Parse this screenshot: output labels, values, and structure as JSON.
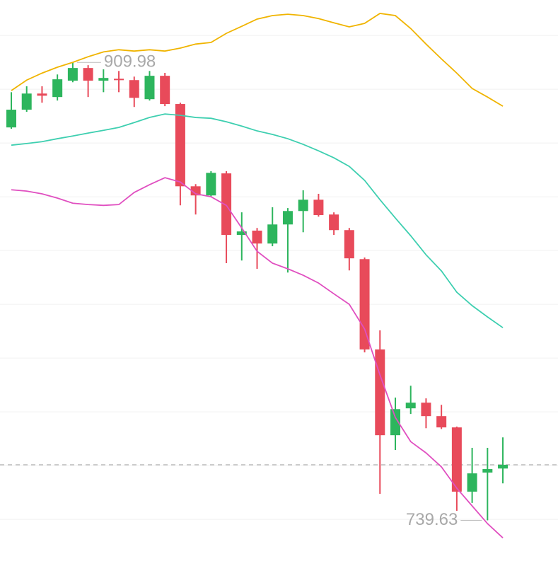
{
  "chart_data": {
    "type": "candlestick",
    "categories": [
      null,
      null,
      null,
      null,
      null,
      null,
      null,
      null,
      null,
      null,
      null,
      null,
      null,
      null,
      null,
      null,
      null,
      null,
      null,
      null,
      null,
      null,
      null,
      null,
      null,
      null,
      null,
      null,
      null,
      null,
      null,
      null,
      null
    ],
    "open": [
      885.8,
      892.4,
      898.4,
      897.1,
      903.2,
      907.9,
      903.2,
      903.9,
      903.4,
      896.3,
      905.0,
      894.5,
      863.9,
      860.5,
      868.7,
      845.8,
      847.4,
      842.6,
      849.7,
      854.7,
      858.9,
      853.4,
      847.6,
      836.8,
      803.2,
      771.3,
      781.3,
      783.4,
      778.4,
      774.2,
      750.3,
      757.4,
      758.9
    ],
    "high": [
      898.9,
      901.1,
      901.1,
      905.5,
      909.98,
      908.95,
      907.4,
      906.8,
      904.7,
      906.8,
      906.1,
      895.0,
      864.7,
      869.5,
      869.5,
      854.2,
      848.4,
      856.1,
      855.8,
      862.4,
      861.1,
      854.2,
      848.4,
      837.4,
      810.3,
      785.3,
      789.7,
      785.0,
      782.6,
      774.5,
      766.6,
      766.6,
      770.5
    ],
    "low": [
      885.3,
      891.6,
      895.0,
      895.8,
      902.6,
      897.1,
      898.9,
      898.9,
      893.4,
      895.8,
      893.7,
      856.8,
      853.4,
      860.0,
      835.3,
      836.3,
      833.2,
      841.6,
      831.8,
      846.8,
      852.6,
      845.8,
      832.6,
      802.1,
      749.5,
      765.8,
      779.2,
      773.9,
      773.6,
      743.2,
      746.1,
      739.63,
      753.4
    ],
    "close": [
      892.4,
      898.4,
      897.6,
      903.7,
      907.9,
      903.2,
      904.2,
      903.4,
      896.8,
      905.0,
      894.5,
      863.9,
      860.5,
      868.9,
      845.8,
      847.1,
      842.6,
      849.7,
      854.7,
      858.9,
      853.2,
      847.6,
      837.1,
      803.2,
      771.3,
      781.0,
      783.4,
      778.4,
      774.2,
      750.3,
      757.1,
      758.7,
      760.3
    ],
    "up_color": "#2db55d",
    "down_color": "#e84a5a",
    "lines": [
      {
        "color": "#f0b400",
        "values": [
          899.5,
          903.4,
          906.0,
          908.2,
          910.0,
          912.1,
          913.9,
          914.7,
          914.2,
          914.7,
          914.2,
          915.3,
          916.8,
          917.4,
          920.8,
          923.4,
          926.1,
          927.4,
          927.9,
          927.4,
          926.3,
          924.7,
          923.2,
          924.5,
          928.2,
          927.4,
          922.6,
          916.8,
          911.3,
          906.0,
          900.3,
          897.1,
          893.7
        ]
      },
      {
        "color": "#3ecfb0",
        "values": [
          879.2,
          879.8,
          880.5,
          881.6,
          882.6,
          883.7,
          884.7,
          885.8,
          887.6,
          889.5,
          890.8,
          890.3,
          889.5,
          889.2,
          887.9,
          886.3,
          884.5,
          883.2,
          881.6,
          879.5,
          877.1,
          874.5,
          871.3,
          866.1,
          858.9,
          852.1,
          845.5,
          838.4,
          832.4,
          824.5,
          819.5,
          815.3,
          811.3
        ]
      },
      {
        "color": "#e04fc0",
        "values": [
          862.6,
          862.1,
          861.1,
          859.5,
          857.6,
          857.1,
          856.8,
          857.1,
          861.6,
          864.5,
          867.1,
          865.5,
          861.1,
          860.0,
          856.8,
          848.4,
          839.7,
          835.3,
          833.2,
          830.8,
          827.9,
          823.9,
          820.0,
          810.8,
          793.7,
          777.9,
          768.9,
          764.7,
          759.5,
          751.6,
          745.0,
          738.4,
          733.1
        ]
      }
    ],
    "ylim": [
      724.5,
      933.2
    ],
    "yticks": [
      740,
      760,
      780,
      800,
      820,
      840,
      860,
      880,
      900,
      920
    ],
    "grid": true
  }
}
